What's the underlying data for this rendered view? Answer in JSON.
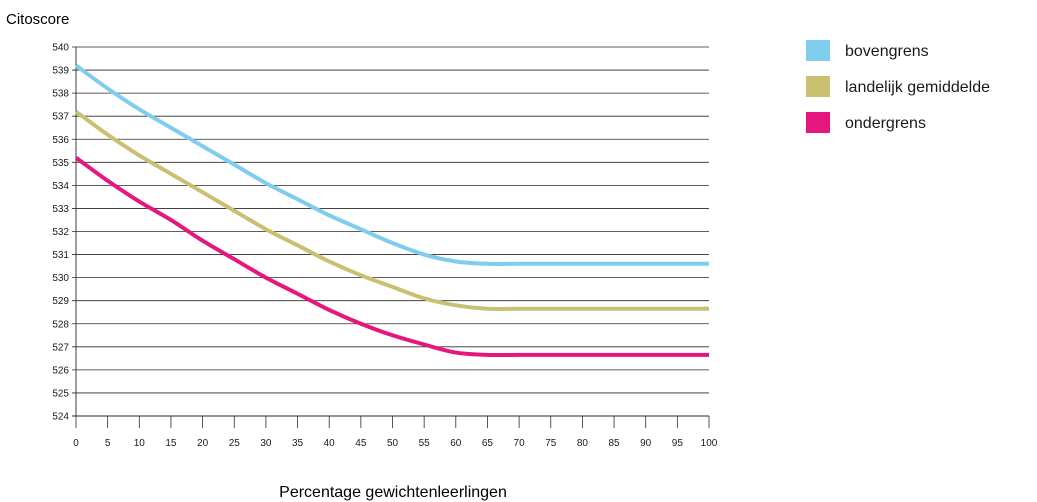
{
  "chart_data": {
    "type": "line",
    "ylabel": "Citoscore",
    "xlabel": "Percentage gewichtenleerlingen",
    "xlim": [
      0,
      100
    ],
    "ylim": [
      524,
      540
    ],
    "x_ticks": [
      0,
      5,
      10,
      15,
      20,
      25,
      30,
      35,
      40,
      45,
      50,
      55,
      60,
      65,
      70,
      75,
      80,
      85,
      90,
      95,
      100
    ],
    "y_ticks": [
      524,
      525,
      526,
      527,
      528,
      529,
      530,
      531,
      532,
      533,
      534,
      535,
      536,
      537,
      538,
      539,
      540
    ],
    "grid": "horizontal",
    "legend_position": "right",
    "x": [
      0,
      5,
      10,
      15,
      20,
      25,
      30,
      35,
      40,
      45,
      50,
      55,
      60,
      65,
      70,
      75,
      80,
      85,
      90,
      95,
      100
    ],
    "series": [
      {
        "name": "bovengrens",
        "color": "#7fcdee",
        "values": [
          539.2,
          538.2,
          537.3,
          536.5,
          535.7,
          534.9,
          534.1,
          533.4,
          532.7,
          532.1,
          531.5,
          531.0,
          530.7,
          530.6,
          530.6,
          530.6,
          530.6,
          530.6,
          530.6,
          530.6,
          530.6
        ]
      },
      {
        "name": "landelijk gemiddelde",
        "color": "#c9c072",
        "values": [
          537.2,
          536.2,
          535.3,
          534.5,
          533.7,
          532.9,
          532.1,
          531.4,
          530.7,
          530.1,
          529.6,
          529.1,
          528.8,
          528.65,
          528.65,
          528.65,
          528.65,
          528.65,
          528.65,
          528.65,
          528.65
        ]
      },
      {
        "name": "ondergrens",
        "color": "#e6167f",
        "values": [
          535.2,
          534.2,
          533.3,
          532.5,
          531.6,
          530.8,
          530.0,
          529.3,
          528.6,
          528.0,
          527.5,
          527.1,
          526.75,
          526.65,
          526.65,
          526.65,
          526.65,
          526.65,
          526.65,
          526.65,
          526.65
        ]
      }
    ]
  }
}
